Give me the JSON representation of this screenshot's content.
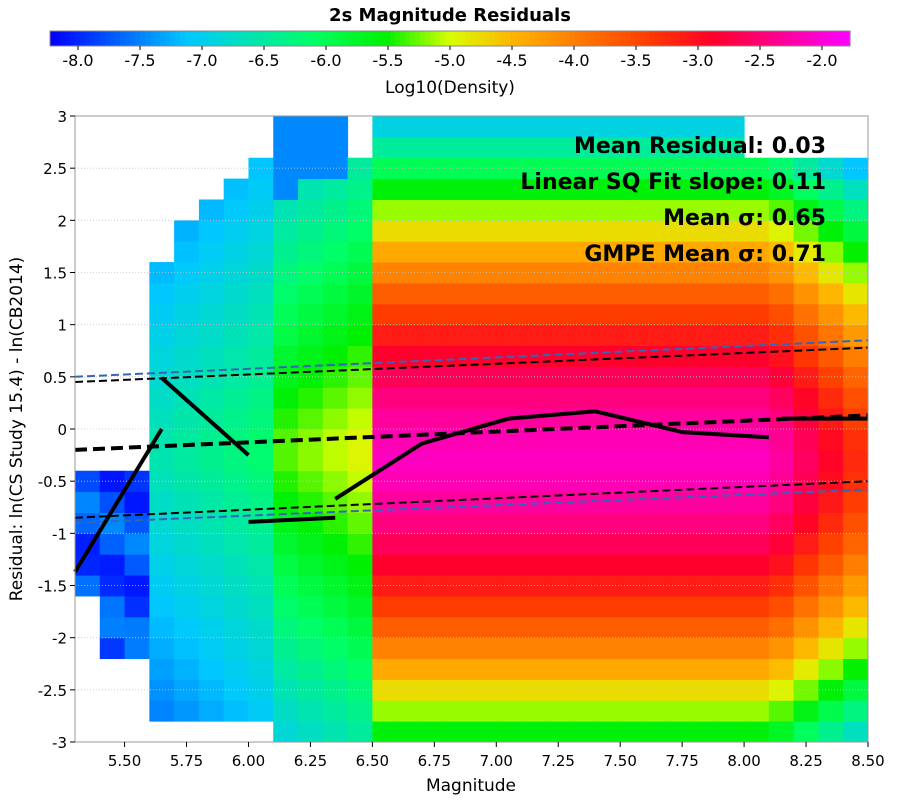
{
  "chart_data": {
    "type": "heatmap",
    "title": "2s Magnitude Residuals",
    "xlabel": "Magnitude",
    "ylabel": "Residual: ln(CS Study 15.4) - ln(CB2014)",
    "xlim": [
      5.3,
      8.5
    ],
    "ylim": [
      -3,
      3
    ],
    "x_ticks": [
      "5.50",
      "5.75",
      "6.00",
      "6.25",
      "6.50",
      "6.75",
      "7.00",
      "7.25",
      "7.50",
      "7.75",
      "8.00",
      "8.25",
      "8.50"
    ],
    "y_ticks": [
      "3",
      "2.5",
      "2",
      "1.5",
      "1",
      "0.5",
      "0",
      "-0.5",
      "-1",
      "-1.5",
      "-2",
      "-2.5",
      "-3"
    ],
    "grid": true,
    "colorbar": {
      "label": "Log10(Density)",
      "range": [
        -8.0,
        -2.0
      ],
      "ticks": [
        "-8.0",
        "-7.5",
        "-7.0",
        "-6.5",
        "-6.0",
        "-5.5",
        "-5.0",
        "-4.5",
        "-4.0",
        "-3.5",
        "-3.0",
        "-2.5",
        "-2.0"
      ]
    },
    "annotations": [
      "Mean Residual: 0.03",
      "Linear SQ Fit slope: 0.11",
      "Mean σ: 0.65",
      "GMPE Mean σ: 0.71"
    ],
    "mean_residual_by_bin": {
      "x": [
        5.3,
        5.65,
        5.65,
        6.0,
        6.0,
        6.35,
        6.35,
        6.7,
        6.7,
        7.05,
        7.4,
        7.75,
        8.1,
        8.15,
        8.5
      ],
      "y": [
        -1.37,
        0.0,
        0.49,
        -0.25,
        -0.89,
        -0.85,
        -0.67,
        -0.14,
        -0.14,
        0.1,
        0.17,
        -0.03,
        -0.08,
        0.1,
        0.1
      ]
    },
    "linear_fit": {
      "x": [
        5.3,
        8.5
      ],
      "y": [
        -0.2,
        0.13
      ]
    },
    "fit_sigma_band": {
      "upper": [
        0.45,
        0.78
      ],
      "lower": [
        -0.85,
        -0.5
      ]
    },
    "gmpe_sigma_band": {
      "upper": [
        0.5,
        0.85
      ],
      "lower": [
        -0.9,
        -0.58
      ]
    }
  }
}
